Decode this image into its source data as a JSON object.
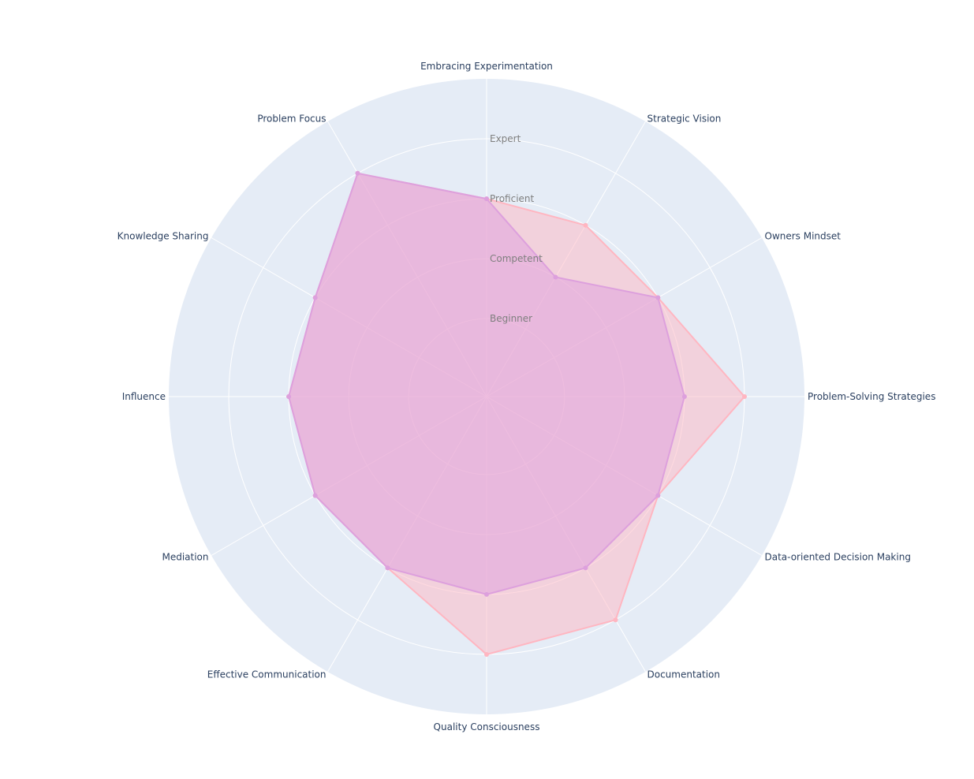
{
  "chart_data": {
    "type": "radar",
    "axes": [
      "Embracing Experimentation",
      "Strategic Vision",
      "Owners Mindset",
      "Problem-Solving Strategies",
      "Data-oriented Decision Making",
      "Documentation",
      "Quality Consciousness",
      "Effective Communication",
      "Mediation",
      "Influence",
      "Knowledge Sharing",
      "Problem Focus"
    ],
    "radial_range": [
      0,
      5.3
    ],
    "radial_ticks": [
      {
        "value": 1.3,
        "label": "Beginner"
      },
      {
        "value": 2.3,
        "label": "Competent"
      },
      {
        "value": 3.3,
        "label": "Proficient"
      },
      {
        "value": 4.3,
        "label": "Expert"
      }
    ],
    "grid": true,
    "legend": "none",
    "series": [
      {
        "color": "#ffb6c1",
        "values": [
          3.3,
          3.3,
          3.3,
          4.3,
          3.3,
          4.3,
          4.3,
          3.3,
          3.3,
          3.3,
          3.3,
          4.3
        ]
      },
      {
        "color": "#dda0dd",
        "values": [
          3.3,
          2.3,
          3.3,
          3.3,
          3.3,
          3.3,
          3.3,
          3.3,
          3.3,
          3.3,
          3.3,
          4.3
        ]
      }
    ],
    "polar_background": "#e5ecf6",
    "grid_color": "#ffffff"
  }
}
